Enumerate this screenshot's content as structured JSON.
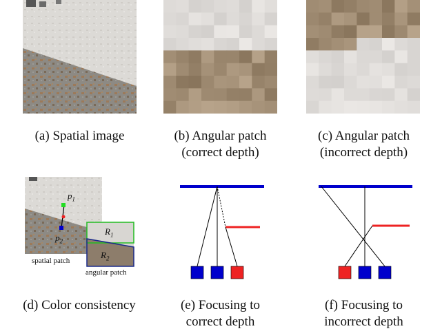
{
  "panels": {
    "a": {
      "caption": [
        "(a) Spatial image"
      ]
    },
    "b": {
      "caption": [
        "(b) Angular patch",
        "(correct depth)"
      ]
    },
    "c": {
      "caption": [
        "(c) Angular patch",
        "(incorrect depth)"
      ]
    },
    "d": {
      "caption": [
        "(d) Color consistency"
      ],
      "labels": {
        "p1": "p",
        "p1_sub": "1",
        "p2": "p",
        "p2_sub": "2",
        "r1": "R",
        "r1_sub": "1",
        "r2": "R",
        "r2_sub": "2",
        "spatial": "spatial patch",
        "angular": "angular patch"
      }
    },
    "e": {
      "caption": [
        "(e) Focusing to",
        "correct depth"
      ]
    },
    "f": {
      "caption": [
        "(f) Focusing to",
        "incorrect depth"
      ]
    }
  },
  "colors": {
    "blue": "#0000cc",
    "red": "#ee2222",
    "green": "#22bb22",
    "navy": "#1a2a8a",
    "light_patch": "#dcd8d3",
    "dark_patch": "#8a7a68"
  }
}
